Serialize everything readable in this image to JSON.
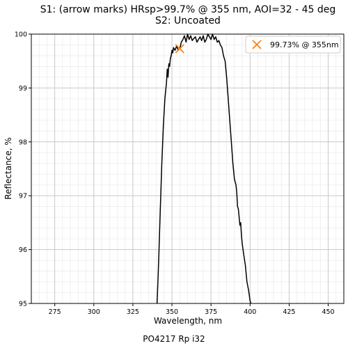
{
  "chart_data": {
    "type": "line",
    "title_lines": [
      "S1: (arrow marks) HRsp>99.7% @ 355 nm, AOI=32 - 45 deg",
      "S2: Uncoated"
    ],
    "xlabel": "Wavelength, nm",
    "ylabel": "Reflectance, %",
    "footer": "PO4217 Rp i32",
    "xlim": [
      260,
      460
    ],
    "ylim": [
      95,
      100
    ],
    "xticks": [
      275,
      300,
      325,
      350,
      375,
      400,
      425,
      450
    ],
    "yticks": [
      95,
      96,
      97,
      98,
      99,
      100
    ],
    "grid": true,
    "minor_grid": true,
    "legend_position": "top-right",
    "series": [
      {
        "color": "#000000",
        "x": [
          340.5,
          341.5,
          342.5,
          343.5,
          344.5,
          345.5,
          346.5,
          347.0,
          347.5,
          348.0,
          348.5,
          349.0,
          349.5,
          350.0,
          350.5,
          351.0,
          352.0,
          353.0,
          354.0,
          355.0,
          356.0,
          357.0,
          358.0,
          359.0,
          360.0,
          361.0,
          362.0,
          363.0,
          364.0,
          365.0,
          366.0,
          367.0,
          368.0,
          369.0,
          370.0,
          371.0,
          372.0,
          373.0,
          374.0,
          375.0,
          376.0,
          377.0,
          378.0,
          379.0,
          380.0,
          381.0,
          382.0,
          383.0,
          384.0,
          385.0,
          386.0,
          387.0,
          388.0,
          389.0,
          390.0,
          391.0,
          391.5,
          392.0,
          392.5,
          393.0,
          393.5,
          394.0,
          394.5,
          395.0,
          396.0,
          397.0,
          398.0,
          399.0,
          400.0,
          400.5
        ],
        "y": [
          95.0,
          95.8,
          96.7,
          97.6,
          98.3,
          98.8,
          99.1,
          99.35,
          99.2,
          99.45,
          99.4,
          99.55,
          99.6,
          99.7,
          99.65,
          99.75,
          99.7,
          99.78,
          99.7,
          99.73,
          99.85,
          99.9,
          99.97,
          99.85,
          100.0,
          99.9,
          99.97,
          99.88,
          99.92,
          99.95,
          99.85,
          99.9,
          99.95,
          99.88,
          99.97,
          99.85,
          99.9,
          100.0,
          99.95,
          99.9,
          100.0,
          99.9,
          99.95,
          99.85,
          99.88,
          99.8,
          99.75,
          99.6,
          99.5,
          99.2,
          98.8,
          98.4,
          98.0,
          97.6,
          97.3,
          97.2,
          97.05,
          96.8,
          96.75,
          96.6,
          96.45,
          96.5,
          96.25,
          96.1,
          95.9,
          95.7,
          95.4,
          95.25,
          95.05,
          95.0
        ]
      }
    ],
    "marker": {
      "x": 355,
      "y": 99.73,
      "symbol": "X",
      "color": "#ff7f0e"
    },
    "legend": [
      {
        "label": "99.73% @ 355nm",
        "symbol": "X",
        "color": "#ff7f0e"
      }
    ]
  }
}
